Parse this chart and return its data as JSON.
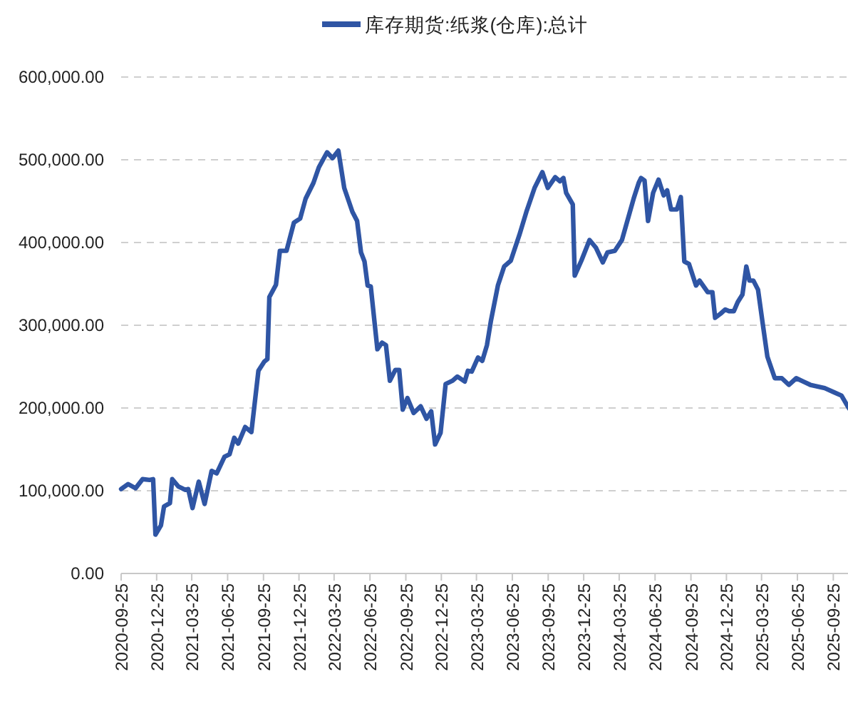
{
  "chart_data": {
    "type": "line",
    "xlim": [
      "2020-09-25",
      "2025-11-09"
    ],
    "xticks": [
      "2020-09-25",
      "2020-12-25",
      "2021-03-25",
      "2021-06-25",
      "2021-09-25",
      "2021-12-25",
      "2022-03-25",
      "2022-06-25",
      "2022-09-25",
      "2022-12-25",
      "2023-03-25",
      "2023-06-25",
      "2023-09-25",
      "2023-12-25",
      "2024-03-25",
      "2024-06-25",
      "2024-09-25",
      "2024-12-25",
      "2025-03-25",
      "2025-06-25",
      "2025-09-25"
    ],
    "ylim": [
      0,
      600000
    ],
    "yticks": [
      {
        "value": 0,
        "label": "0.00"
      },
      {
        "value": 100000,
        "label": "100,000.00"
      },
      {
        "value": 200000,
        "label": "200,000.00"
      },
      {
        "value": 300000,
        "label": "300,000.00"
      },
      {
        "value": 400000,
        "label": "400,000.00"
      },
      {
        "value": 500000,
        "label": "500,000.00"
      },
      {
        "value": 600000,
        "label": "600,000.00"
      }
    ],
    "grid": "y",
    "legend": "top",
    "marker": "none",
    "line_style": "solid",
    "series": [
      {
        "name": "库存期货:纸浆(仓库):总计",
        "color": "#2f55a4",
        "x": [
          "2020-09-25",
          "2020-10-13",
          "2020-11-01",
          "2020-11-19",
          "2020-12-07",
          "2020-12-16",
          "2020-12-22",
          "2021-01-05",
          "2021-01-13",
          "2021-01-28",
          "2021-02-03",
          "2021-02-19",
          "2021-03-09",
          "2021-03-16",
          "2021-03-27",
          "2021-04-12",
          "2021-04-27",
          "2021-05-15",
          "2021-05-28",
          "2021-06-17",
          "2021-06-30",
          "2021-07-12",
          "2021-07-22",
          "2021-08-09",
          "2021-08-25",
          "2021-09-12",
          "2021-09-27",
          "2021-10-05",
          "2021-10-10",
          "2021-10-27",
          "2021-11-06",
          "2021-11-23",
          "2021-12-12",
          "2021-12-28",
          "2022-01-11",
          "2022-01-31",
          "2022-02-14",
          "2022-03-07",
          "2022-03-21",
          "2022-04-05",
          "2022-04-20",
          "2022-05-11",
          "2022-05-23",
          "2022-06-02",
          "2022-06-11",
          "2022-06-19",
          "2022-06-27",
          "2022-07-14",
          "2022-07-26",
          "2022-08-05",
          "2022-08-15",
          "2022-08-29",
          "2022-09-08",
          "2022-09-17",
          "2022-09-29",
          "2022-10-15",
          "2022-11-02",
          "2022-11-17",
          "2022-11-29",
          "2022-12-09",
          "2022-12-23",
          "2023-01-05",
          "2023-01-23",
          "2023-02-04",
          "2023-02-23",
          "2023-03-03",
          "2023-03-13",
          "2023-03-29",
          "2023-04-09",
          "2023-04-21",
          "2023-05-01",
          "2023-05-19",
          "2023-06-04",
          "2023-06-21",
          "2023-07-13",
          "2023-07-31",
          "2023-08-21",
          "2023-09-10",
          "2023-09-24",
          "2023-10-13",
          "2023-10-25",
          "2023-11-03",
          "2023-11-10",
          "2023-11-27",
          "2023-12-02",
          "2023-12-19",
          "2024-01-09",
          "2024-01-25",
          "2024-02-12",
          "2024-02-24",
          "2024-03-14",
          "2024-04-01",
          "2024-04-13",
          "2024-05-01",
          "2024-05-14",
          "2024-05-20",
          "2024-05-29",
          "2024-06-07",
          "2024-06-20",
          "2024-07-04",
          "2024-07-17",
          "2024-07-26",
          "2024-08-05",
          "2024-08-20",
          "2024-08-30",
          "2024-09-08",
          "2024-09-20",
          "2024-10-08",
          "2024-10-17",
          "2024-11-07",
          "2024-11-19",
          "2024-11-26",
          "2024-12-10",
          "2024-12-22",
          "2025-01-01",
          "2025-01-13",
          "2025-01-23",
          "2025-02-04",
          "2025-02-14",
          "2025-02-22",
          "2025-03-04",
          "2025-03-16",
          "2025-03-28",
          "2025-04-09",
          "2025-04-28",
          "2025-05-16",
          "2025-06-03",
          "2025-06-22",
          "2025-07-10",
          "2025-07-28",
          "2025-09-03",
          "2025-09-27",
          "2025-10-16",
          "2025-11-01",
          "2025-11-05"
        ],
        "values": [
          102000,
          108000,
          103000,
          114000,
          113000,
          114000,
          47000,
          58000,
          81000,
          85000,
          114000,
          105000,
          101000,
          102000,
          79000,
          111000,
          84000,
          124000,
          121000,
          141000,
          144000,
          164000,
          157000,
          177000,
          171000,
          245000,
          256000,
          259000,
          334000,
          349000,
          390000,
          390000,
          424000,
          429000,
          453000,
          472000,
          491000,
          509000,
          502000,
          511000,
          466000,
          437000,
          426000,
          388000,
          377000,
          348000,
          347000,
          271000,
          279000,
          276000,
          233000,
          246000,
          246000,
          198000,
          212000,
          194000,
          202000,
          187000,
          196000,
          156000,
          170000,
          229000,
          233000,
          238000,
          232000,
          245000,
          244000,
          261000,
          257000,
          276000,
          305000,
          348000,
          371000,
          378000,
          409000,
          437000,
          466000,
          485000,
          466000,
          479000,
          474000,
          478000,
          460000,
          446000,
          360000,
          378000,
          403000,
          394000,
          376000,
          388000,
          390000,
          403000,
          423000,
          453000,
          472000,
          478000,
          475000,
          426000,
          460000,
          476000,
          457000,
          463000,
          440000,
          440000,
          455000,
          377000,
          374000,
          348000,
          354000,
          340000,
          340000,
          309000,
          314000,
          319000,
          317000,
          317000,
          328000,
          337000,
          371000,
          354000,
          354000,
          343000,
          302000,
          262000,
          236000,
          236000,
          228000,
          236000,
          232000,
          228000,
          224000,
          219000,
          215000,
          202000,
          199000
        ]
      }
    ]
  }
}
